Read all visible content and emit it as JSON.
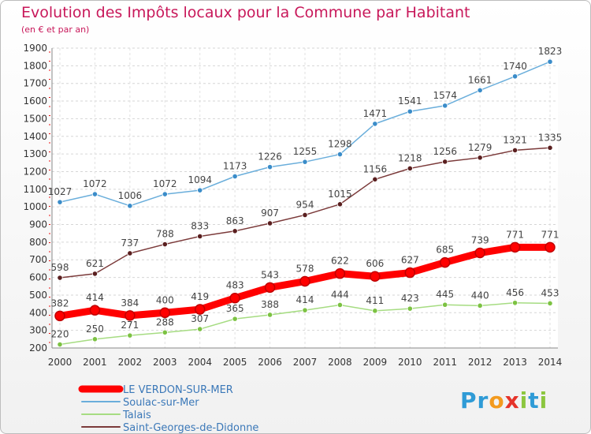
{
  "title": "Evolution des Impôts locaux pour la Commune par Habitant",
  "subtitle": "(en € et par an)",
  "logo": {
    "text": "Proxiti"
  },
  "chart_data": {
    "type": "line",
    "x": [
      "2000",
      "2001",
      "2002",
      "2003",
      "2004",
      "2005",
      "2006",
      "2007",
      "2008",
      "2009",
      "2010",
      "2011",
      "2012",
      "2013",
      "2014"
    ],
    "ylim": [
      200,
      1900
    ],
    "yticks": [
      200,
      300,
      400,
      500,
      600,
      700,
      800,
      900,
      1000,
      1100,
      1200,
      1300,
      1400,
      1500,
      1600,
      1700,
      1800,
      1900
    ],
    "grid": true,
    "legend_position": "bottom-left",
    "series": [
      {
        "name": "LE VERDON-SUR-MER",
        "color": "#ff0000",
        "marker": "#ff0000",
        "values": [
          382,
          414,
          384,
          400,
          419,
          483,
          543,
          578,
          622,
          606,
          627,
          685,
          739,
          771,
          771
        ],
        "highlight": true
      },
      {
        "name": "Soulac-sur-Mer",
        "color": "#6aaedb",
        "marker": "#3a8cc9",
        "values": [
          1027,
          1072,
          1006,
          1072,
          1094,
          1173,
          1226,
          1255,
          1298,
          1471,
          1541,
          1574,
          1661,
          1740,
          1823
        ],
        "highlight": false
      },
      {
        "name": "Talais",
        "color": "#a6dc82",
        "marker": "#7cc242",
        "values": [
          220,
          250,
          271,
          288,
          307,
          365,
          388,
          414,
          444,
          411,
          423,
          445,
          440,
          456,
          453
        ],
        "highlight": false
      },
      {
        "name": "Saint-Georges-de-Didonne",
        "color": "#7b3a3a",
        "marker": "#5a1f1f",
        "values": [
          598,
          621,
          737,
          788,
          833,
          863,
          907,
          954,
          1015,
          1156,
          1218,
          1256,
          1279,
          1321,
          1335
        ],
        "highlight": false
      }
    ]
  }
}
